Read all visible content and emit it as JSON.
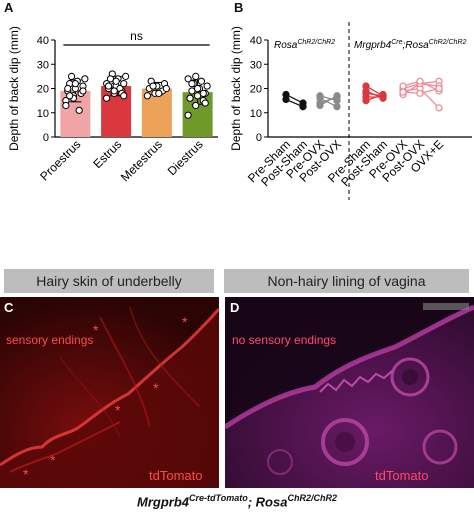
{
  "panels": {
    "A": {
      "letter": "A",
      "ylabel": "Depth of back dip (mm)",
      "yticks": [
        "0",
        "10",
        "20",
        "30",
        "40"
      ],
      "sig_label": "ns"
    },
    "B": {
      "letter": "B",
      "ylabel": "Depth of back dip (mm)",
      "yticks": [
        "0",
        "10",
        "20",
        "30",
        "40"
      ],
      "group_left": {
        "main": "Rosa",
        "sup": "ChR2/ChR2"
      },
      "group_right": {
        "main": "Mrgprb4",
        "sup": "Cre",
        "main2": ";Rosa",
        "sup2": "ChR2/ChR2"
      }
    },
    "C": {
      "letter": "C",
      "header": "Hairy skin of underbelly",
      "overlay": "sensory endings",
      "marker": "tdTomato"
    },
    "D": {
      "letter": "D",
      "header": "Non-hairy lining of vagina",
      "overlay": "no sensory endings",
      "marker": "tdTomato"
    }
  },
  "caption": {
    "part1": "Mrgprb4",
    "sup1": "Cre-tdTomato",
    "sep": "; ",
    "part2": "Rosa",
    "sup2": "ChR2/ChR2"
  },
  "colors": {
    "proestrus": "#f0a4a6",
    "estrus": "#d9383f",
    "metestrus": "#eda25a",
    "diestrus": "#6f9a2a",
    "control_black": "#111111",
    "control_gray": "#8a8a8a",
    "mrg_red": "#d9383f",
    "mrg_pink": "#ef8c97"
  },
  "chart_data": [
    {
      "type": "bar",
      "panel": "A",
      "ylabel": "Depth of back dip (mm)",
      "ylim": [
        0,
        40
      ],
      "categories": [
        "Proestrus",
        "Estrus",
        "Metestrus",
        "Diestrus"
      ],
      "values": [
        19,
        21,
        20,
        18.5
      ],
      "sd": [
        4.5,
        4,
        2.5,
        5
      ],
      "points": [
        [
          15,
          17,
          18,
          19,
          20,
          21,
          22,
          23,
          24,
          25,
          11,
          13,
          16,
          18,
          20,
          22,
          19,
          17
        ],
        [
          16,
          18,
          19,
          20,
          21,
          22,
          23,
          24,
          25,
          26,
          20,
          22,
          19,
          18,
          21,
          23,
          17,
          24
        ],
        [
          17,
          18,
          19,
          20,
          21,
          22,
          23,
          18,
          20,
          21
        ],
        [
          9,
          13,
          15,
          16,
          17,
          18,
          19,
          20,
          21,
          22,
          23,
          24,
          25,
          18,
          16,
          20,
          14,
          22
        ]
      ],
      "annotation": "ns"
    },
    {
      "type": "scatter",
      "panel": "B",
      "ylabel": "Depth of back dip (mm)",
      "ylim": [
        0,
        40
      ],
      "categories": [
        "Pre-Sham",
        "Post-Sham",
        "Pre-OVX",
        "Post-OVX",
        "Pre-Sham",
        "Post-Sham",
        "Pre-OVX",
        "Post-OVX",
        "OVX+E"
      ],
      "groups": [
        {
          "name": "Rosa ChR2/ChR2 Sham",
          "x": [
            0,
            1
          ],
          "lines": [
            [
              17.5,
              14
            ],
            [
              15.5,
              12.5
            ]
          ]
        },
        {
          "name": "Rosa ChR2/ChR2 OVX",
          "x": [
            2,
            3
          ],
          "lines": [
            [
              17,
              15
            ],
            [
              14,
              16.5
            ],
            [
              13,
              17
            ],
            [
              16,
              12.5
            ]
          ]
        },
        {
          "name": "Mrgprb4 Sham",
          "x": [
            4,
            5
          ],
          "lines": [
            [
              18,
              17
            ],
            [
              16.5,
              16.5
            ],
            [
              15,
              17.5
            ],
            [
              21,
              17
            ],
            [
              19,
              16
            ]
          ]
        },
        {
          "name": "Mrgprb4 OVX+E",
          "x": [
            6,
            7,
            8
          ],
          "lines": [
            [
              20,
              22,
              23
            ],
            [
              19,
              20,
              12
            ],
            [
              17.5,
              22,
              21
            ],
            [
              21,
              23,
              19
            ],
            [
              18.5,
              18,
              20
            ]
          ]
        }
      ]
    }
  ]
}
